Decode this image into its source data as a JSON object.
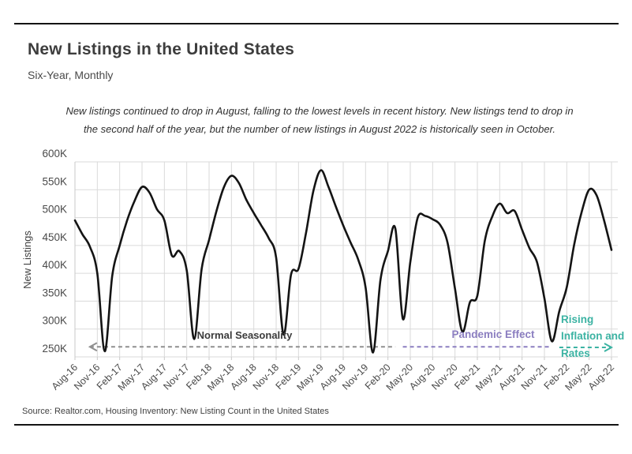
{
  "header": {
    "title": "New Listings in the United States",
    "subtitle": "Six-Year, Monthly"
  },
  "annotation": {
    "line1": "New listings continued to drop in August, falling to the lowest levels in recent history. New listings tend to drop in",
    "line2": "the second half of the year, but the number of new listings in August 2022 is historically seen in October."
  },
  "source": "Source:  Realtor.com, Housing Inventory: New Listing Count in the United States",
  "chart_data": {
    "type": "line",
    "title": "New Listings in the United States",
    "subtitle": "Six-Year, Monthly",
    "xlabel": "",
    "ylabel": "New Listings",
    "unit": "thousands of listings",
    "ylim": [
      250,
      600
    ],
    "grid": true,
    "legend_position": "none",
    "line_color": "#141414",
    "grid_color": "#dadada",
    "axis_color": "#c9c9c9",
    "tick_label_color": "#4a4a4a",
    "y_ticks": [
      600,
      550,
      500,
      450,
      400,
      350,
      300,
      250
    ],
    "y_tick_labels": [
      "600K",
      "550K",
      "500K",
      "450K",
      "400K",
      "350K",
      "300K",
      "250K"
    ],
    "x_tick_labels": [
      "Aug-16",
      "Nov-16",
      "Feb-17",
      "May-17",
      "Aug-17",
      "Nov-17",
      "Feb-18",
      "May-18",
      "Aug-18",
      "Nov-18",
      "Feb-19",
      "May-19",
      "Aug-19",
      "Nov-19",
      "Feb-20",
      "May-20",
      "Aug-20",
      "Nov-20",
      "Feb-21",
      "May-21",
      "Aug-21",
      "Nov-21",
      "Feb-22",
      "May-22",
      "Aug-22"
    ],
    "x": [
      "Aug-16",
      "Sep-16",
      "Oct-16",
      "Nov-16",
      "Dec-16",
      "Jan-17",
      "Feb-17",
      "Mar-17",
      "Apr-17",
      "May-17",
      "Jun-17",
      "Jul-17",
      "Aug-17",
      "Sep-17",
      "Oct-17",
      "Nov-17",
      "Dec-17",
      "Jan-18",
      "Feb-18",
      "Mar-18",
      "Apr-18",
      "May-18",
      "Jun-18",
      "Jul-18",
      "Aug-18",
      "Sep-18",
      "Oct-18",
      "Nov-18",
      "Dec-18",
      "Jan-19",
      "Feb-19",
      "Mar-19",
      "Apr-19",
      "May-19",
      "Jun-19",
      "Jul-19",
      "Aug-19",
      "Sep-19",
      "Oct-19",
      "Nov-19",
      "Dec-19",
      "Jan-20",
      "Feb-20",
      "Mar-20",
      "Apr-20",
      "May-20",
      "Jun-20",
      "Jul-20",
      "Aug-20",
      "Sep-20",
      "Oct-20",
      "Nov-20",
      "Dec-20",
      "Jan-21",
      "Feb-21",
      "Mar-21",
      "Apr-21",
      "May-21",
      "Jun-21",
      "Jul-21",
      "Aug-21",
      "Sep-21",
      "Oct-21",
      "Nov-21",
      "Dec-21",
      "Jan-22",
      "Feb-22",
      "Mar-22",
      "Apr-22",
      "May-22",
      "Jun-22",
      "Jul-22",
      "Aug-22"
    ],
    "series": [
      {
        "name": "New Listings (thousands)",
        "values": [
          495,
          470,
          448,
          400,
          260,
          395,
          450,
          495,
          530,
          555,
          545,
          515,
          495,
          432,
          440,
          405,
          282,
          408,
          460,
          512,
          555,
          575,
          562,
          532,
          508,
          486,
          463,
          428,
          290,
          398,
          408,
          472,
          548,
          585,
          556,
          520,
          486,
          455,
          425,
          375,
          258,
          388,
          440,
          480,
          318,
          420,
          500,
          503,
          497,
          487,
          455,
          372,
          295,
          348,
          360,
          458,
          502,
          525,
          508,
          512,
          478,
          445,
          420,
          355,
          278,
          332,
          375,
          452,
          510,
          550,
          540,
          495,
          442
        ]
      }
    ],
    "annotations": [
      {
        "label": "Normal Seasonality",
        "text_color": "#3b3b3b",
        "line_color": "#8f8f8f",
        "start_index": 2,
        "end_index": 43,
        "arrow": "left",
        "y_value": 268
      },
      {
        "label": "Pandemic Effect",
        "text_color": "#8b7ec0",
        "line_color": "#8b7ec0",
        "start_index": 44,
        "end_index": 64,
        "arrow": "none",
        "y_value": 268
      },
      {
        "label": "Rising Inflation and Rates",
        "text_color": "#3cb3a3",
        "line_color": "#3cb3a3",
        "start_index": 65,
        "end_index": 72,
        "arrow": "right",
        "y_value": 267
      }
    ]
  }
}
